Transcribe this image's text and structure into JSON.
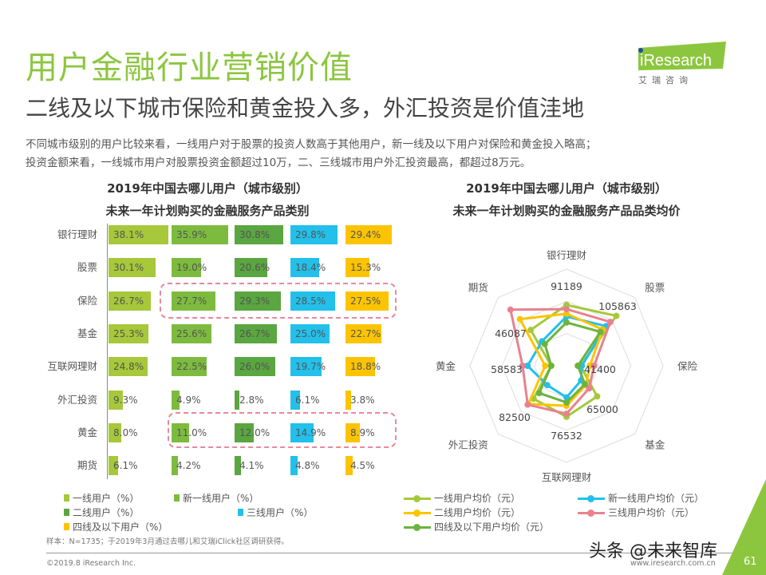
{
  "header": {
    "title": "用户金融行业营销价值",
    "subtitle": "二线及以下城市保险和黄金投入多，外汇投资是价值洼地",
    "description": [
      "不同城市级别的用户比较来看，一线用户对于股票的投资人数高于其他用户，新一线及以下用户对保险和黄金投入略高；",
      "投资金额来看，一线城市用户对股票投资金额超过10万，二、三线城市用户外汇投资最高，都超过8万元。"
    ]
  },
  "logo": {
    "brand": "iResearch",
    "sub": "艾 瑞 咨 询"
  },
  "colors": {
    "tier1": "#a6c83a",
    "newtier1": "#7dbb3e",
    "tier2": "#5aa640",
    "tier3": "#22c0ea",
    "tier4": "#fcc400",
    "r_tier1": "#a6c83a",
    "r_newtier1": "#22c0ea",
    "r_tier2": "#fcc400",
    "r_tier3": "#e8818f",
    "r_tier4": "#6cb33f",
    "title": "#8cc63f"
  },
  "chart_data": [
    {
      "type": "bar",
      "title": "2019年中国去哪儿用户（城市级别）",
      "subtitle": "未来一年计划购买的金融服务产品类别",
      "categories": [
        "银行理财",
        "股票",
        "保险",
        "基金",
        "互联网理财",
        "外汇投资",
        "黄金",
        "期货"
      ],
      "unit": "%",
      "series": [
        {
          "name": "一线用户（%）",
          "values": [
            38.1,
            30.1,
            26.7,
            25.3,
            24.8,
            9.3,
            8.0,
            6.1
          ]
        },
        {
          "name": "新一线用户（%）",
          "values": [
            35.9,
            19.0,
            27.7,
            25.6,
            22.5,
            4.9,
            11.0,
            4.2
          ]
        },
        {
          "name": "二线用户（%）",
          "values": [
            30.8,
            20.6,
            29.3,
            26.7,
            26.0,
            2.8,
            12.0,
            4.1
          ]
        },
        {
          "name": "三线用户（%）",
          "values": [
            29.8,
            18.4,
            28.5,
            25.0,
            19.7,
            6.1,
            14.9,
            4.8
          ]
        },
        {
          "name": "四线及以下用户（%）",
          "values": [
            29.4,
            15.3,
            27.5,
            22.7,
            18.8,
            3.8,
            8.9,
            4.5
          ]
        }
      ],
      "highlighted_categories": [
        "保险",
        "黄金"
      ]
    },
    {
      "type": "radar",
      "title": "2019年中国去哪儿用户（城市级别）",
      "subtitle": "未来一年计划购买的金融服务产品品类均价",
      "axes": [
        "银行理财",
        "股票",
        "保险",
        "基金",
        "互联网理财",
        "外汇投资",
        "黄金",
        "期货"
      ],
      "rmax": 145000,
      "value_labels": [
        "91189",
        "105863",
        "41400",
        "65000",
        "76532",
        "82500",
        "58583",
        "46087"
      ],
      "series": [
        {
          "name": "一线用户均价（元）",
          "values": [
            91189,
            105863,
            21000,
            65000,
            76532,
            70000,
            23000,
            76000
          ]
        },
        {
          "name": "新一线用户均价（元）",
          "values": [
            74000,
            84000,
            23000,
            31000,
            47500,
            41000,
            58583,
            52000
          ]
        },
        {
          "name": "二线用户均价（元）",
          "values": [
            78000,
            77000,
            35000,
            41000,
            60000,
            81000,
            32000,
            99000
          ]
        },
        {
          "name": "三线用户均价（元）",
          "values": [
            85000,
            93000,
            41400,
            48000,
            72000,
            82500,
            66000,
            119000
          ]
        },
        {
          "name": "四线及以下用户均价（元）",
          "values": [
            65000,
            72000,
            17000,
            39000,
            55000,
            58000,
            23000,
            46087
          ]
        }
      ]
    }
  ],
  "footer": {
    "note": "样本：N=1735；于2019年3月通过去哪儿和艾瑞iClick社区调研获得。",
    "copyright": "©2019.8 iResearch Inc.",
    "site": "www.iresearch.com.cn",
    "page": "61",
    "watermark": "头条 @未来智库"
  }
}
